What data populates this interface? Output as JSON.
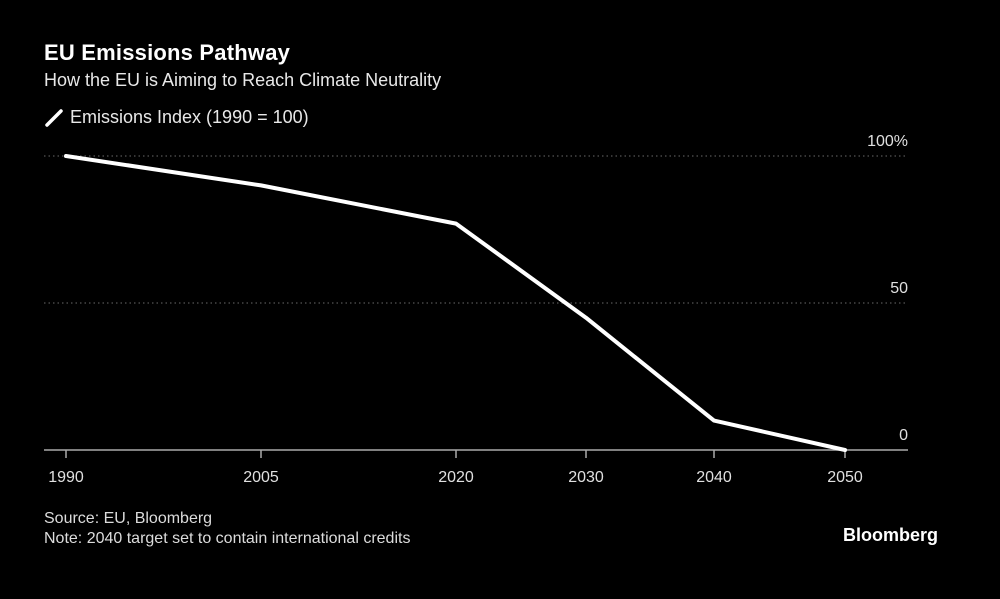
{
  "header": {
    "title": "EU Emissions Pathway",
    "subtitle": "How the EU is Aiming to Reach Climate Neutrality"
  },
  "legend": {
    "label": "Emissions Index (1990 = 100)"
  },
  "footer": {
    "source": "Source: EU, Bloomberg",
    "note": "Note: 2040 target set to contain international credits",
    "brand": "Bloomberg"
  },
  "colors": {
    "background": "#000000",
    "line": "#ffffff",
    "grid": "#555555",
    "axis": "#aaaaaa"
  },
  "chart_data": {
    "type": "line",
    "title": "EU Emissions Pathway",
    "subtitle": "How the EU is Aiming to Reach Climate Neutrality",
    "xlabel": "",
    "ylabel": "",
    "x": [
      1990,
      2005,
      2020,
      2030,
      2040,
      2050
    ],
    "x_tick_labels": [
      "1990",
      "2005",
      "2020",
      "2030",
      "2040",
      "2050"
    ],
    "series": [
      {
        "name": "Emissions Index (1990 = 100)",
        "values": [
          100,
          90,
          77,
          45,
          10,
          0
        ]
      }
    ],
    "y_ticks": [
      0,
      50,
      100
    ],
    "y_tick_labels": [
      "0",
      "50",
      "100%"
    ],
    "ylim": [
      0,
      100
    ],
    "grid": true,
    "legend_position": "top-left"
  }
}
